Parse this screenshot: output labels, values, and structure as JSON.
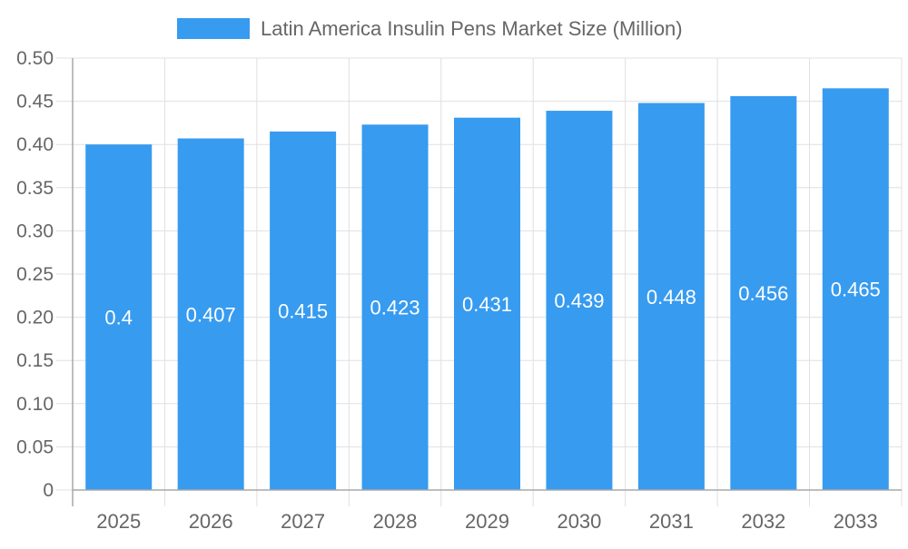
{
  "chart_data": {
    "type": "bar",
    "categories": [
      "2025",
      "2026",
      "2027",
      "2028",
      "2029",
      "2030",
      "2031",
      "2032",
      "2033"
    ],
    "series": [
      {
        "name": "Latin America Insulin Pens Market Size (Million)",
        "values": [
          0.4,
          0.407,
          0.415,
          0.423,
          0.431,
          0.439,
          0.448,
          0.456,
          0.465
        ],
        "labels": [
          "0.4",
          "0.407",
          "0.415",
          "0.423",
          "0.431",
          "0.439",
          "0.448",
          "0.456",
          "0.465"
        ]
      }
    ],
    "ylim": [
      0,
      0.5
    ],
    "yticks": [
      "0",
      "0.05",
      "0.10",
      "0.15",
      "0.20",
      "0.25",
      "0.30",
      "0.35",
      "0.40",
      "0.45",
      "0.50"
    ],
    "grid": true,
    "legend_position": "top",
    "colors": {
      "bar": "#379bf0",
      "grid": "#e0e0e0",
      "axis": "#a8a8a8",
      "text": "#666666",
      "data_label": "#ffffff"
    }
  }
}
